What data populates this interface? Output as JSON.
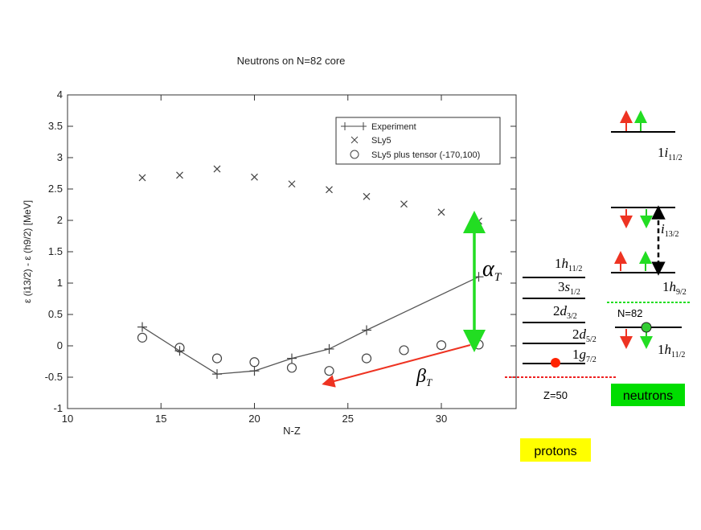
{
  "chart_data": {
    "type": "scatter",
    "title": "Neutrons on N=82 core",
    "xlabel": "N-Z",
    "ylabel": "ε (i13/2) - ε (h9/2) [MeV]",
    "xlim": [
      10,
      34
    ],
    "ylim": [
      -1,
      4
    ],
    "xticks": [
      10,
      15,
      20,
      25,
      30
    ],
    "yticks": [
      -1,
      -0.5,
      0,
      0.5,
      1,
      1.5,
      2,
      2.5,
      3,
      3.5,
      4
    ],
    "grid": false,
    "legend_position": "top-right",
    "series": [
      {
        "name": "Experiment",
        "marker": "plus-line",
        "x": [
          14,
          16,
          18,
          20,
          22,
          24,
          26,
          32
        ],
        "y": [
          0.3,
          -0.08,
          -0.45,
          -0.4,
          -0.2,
          -0.05,
          0.25,
          1.1
        ]
      },
      {
        "name": "SLy5",
        "marker": "cross",
        "x": [
          14,
          16,
          18,
          20,
          22,
          24,
          26,
          28,
          30,
          32
        ],
        "y": [
          2.68,
          2.72,
          2.82,
          2.69,
          2.58,
          2.49,
          2.38,
          2.26,
          2.13,
          1.99
        ]
      },
      {
        "name": "SLy5 plus tensor (-170,100)",
        "marker": "circle",
        "x": [
          14,
          16,
          18,
          20,
          22,
          24,
          26,
          28,
          30,
          32
        ],
        "y": [
          0.13,
          -0.03,
          -0.2,
          -0.26,
          -0.35,
          -0.4,
          -0.2,
          -0.07,
          0.01,
          0.02
        ]
      }
    ],
    "annotations": {
      "alpha": {
        "label": "α",
        "sub": "T",
        "color": "#22dd22"
      },
      "beta": {
        "label": "β",
        "sub": "T",
        "color": "#ee3322"
      }
    }
  },
  "levels": {
    "protons": [
      {
        "n": "1",
        "l": "h",
        "j": "11/2"
      },
      {
        "n": "3",
        "l": "s",
        "j": "1/2"
      },
      {
        "n": "2",
        "l": "d",
        "j": "3/2"
      },
      {
        "n": "2",
        "l": "d",
        "j": "5/2"
      },
      {
        "n": "1",
        "l": "g",
        "j": "7/2"
      }
    ],
    "neutrons": [
      {
        "n": "1",
        "l": "i",
        "j": "11/2"
      },
      {
        "n": "",
        "l": "i",
        "j": "13/2"
      },
      {
        "n": "1",
        "l": "h",
        "j": "9/2"
      },
      {
        "n": "1",
        "l": "h",
        "j": "11/2"
      }
    ],
    "proton_gap_label": "Z=50",
    "neutron_gap_label": "N=82",
    "protons_box": "protons",
    "neutrons_box": "neutrons"
  },
  "colors": {
    "spin_up": "#ee3322",
    "spin_down": "#22cc22",
    "proton_dot": "#ff2200",
    "neutron_dot": "#33cc33",
    "box_yellow": "#ffff00",
    "box_green": "#00dd00"
  }
}
